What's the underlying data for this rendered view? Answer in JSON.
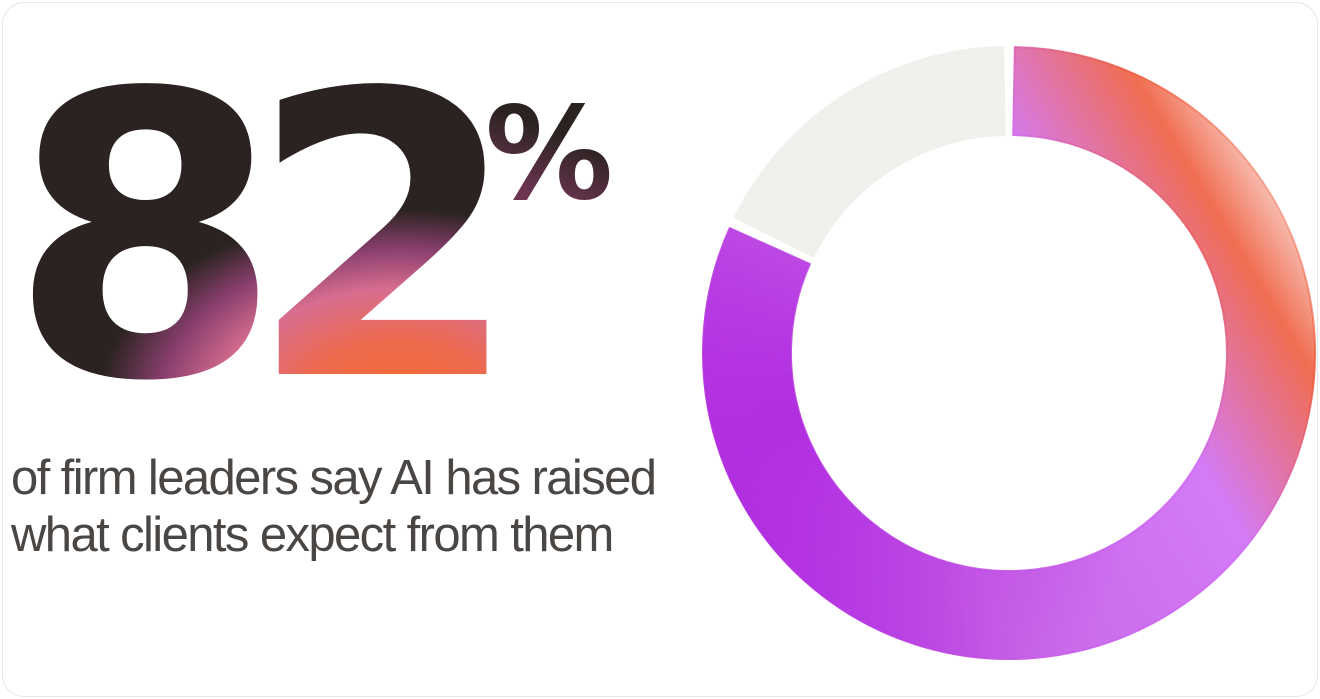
{
  "stat": {
    "value": "82",
    "unit": "%"
  },
  "caption": "of firm leaders say AI has raised what clients expect from them",
  "colors": {
    "text_dark": "#2b2321",
    "caption_text": "#4a4644",
    "accent_orange": "#f4692e",
    "accent_pink": "#d76d8f",
    "accent_purple": "#b02ae0",
    "accent_violet": "#cf6cf5",
    "remainder_gray": "#f1f0ed"
  },
  "chart_data": {
    "type": "pie",
    "variant": "donut",
    "categories": [
      "",
      ""
    ],
    "values": [
      82,
      18
    ],
    "title": "",
    "legend": "none"
  }
}
